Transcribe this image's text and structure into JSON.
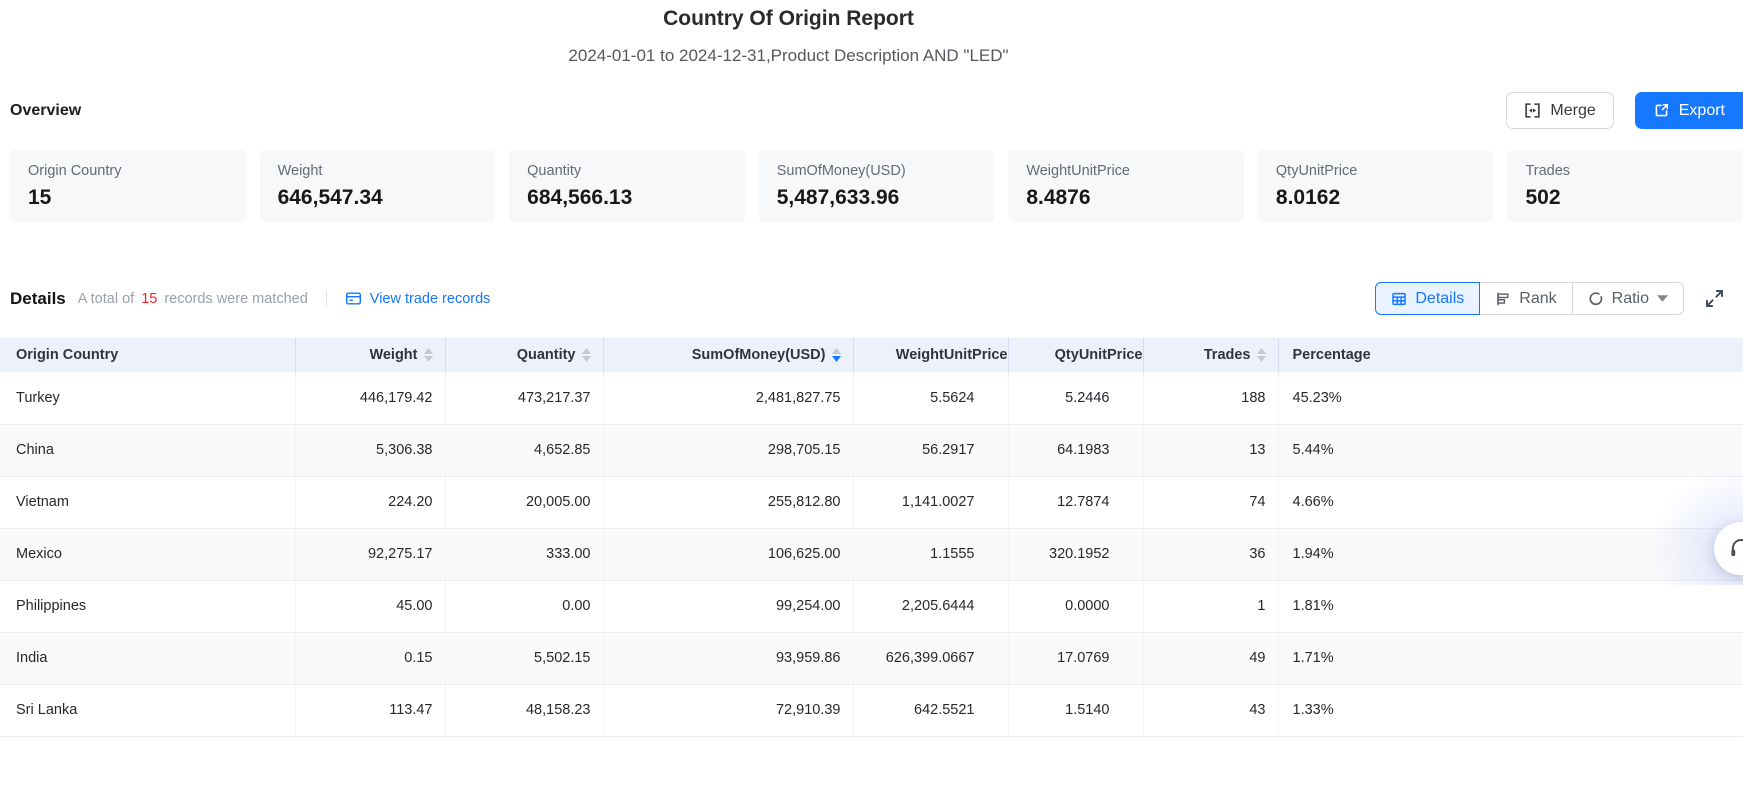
{
  "page": {
    "title": "Country Of Origin Report",
    "subtitle": "2024-01-01 to 2024-12-31,Product Description AND \"LED\""
  },
  "overview": {
    "heading": "Overview",
    "merge_label": "Merge",
    "export_label": "Export",
    "cards": [
      {
        "label": "Origin Country",
        "value": "15"
      },
      {
        "label": "Weight",
        "value": "646,547.34"
      },
      {
        "label": "Quantity",
        "value": "684,566.13"
      },
      {
        "label": "SumOfMoney(USD)",
        "value": "5,487,633.96"
      },
      {
        "label": "WeightUnitPrice",
        "value": "8.4876"
      },
      {
        "label": "QtyUnitPrice",
        "value": "8.0162"
      },
      {
        "label": "Trades",
        "value": "502"
      }
    ]
  },
  "details": {
    "heading": "Details",
    "summary_prefix": "A total of",
    "summary_count": "15",
    "summary_suffix": "records were matched",
    "link_label": "View trade records",
    "view_tabs": [
      {
        "label": "Details",
        "active": true
      },
      {
        "label": "Rank",
        "active": false
      },
      {
        "label": "Ratio",
        "active": false
      }
    ]
  },
  "table": {
    "columns": [
      {
        "label": "Origin Country",
        "sortable": false,
        "sort": null
      },
      {
        "label": "Weight",
        "sortable": true,
        "sort": null
      },
      {
        "label": "Quantity",
        "sortable": true,
        "sort": null
      },
      {
        "label": "SumOfMoney(USD)",
        "sortable": true,
        "sort": "desc"
      },
      {
        "label": "WeightUnitPrice",
        "sortable": false,
        "sort": null
      },
      {
        "label": "QtyUnitPrice",
        "sortable": false,
        "sort": null
      },
      {
        "label": "Trades",
        "sortable": true,
        "sort": null
      },
      {
        "label": "Percentage",
        "sortable": false,
        "sort": null
      }
    ],
    "rows": [
      [
        "Turkey",
        "446,179.42",
        "473,217.37",
        "2,481,827.75",
        "5.5624",
        "5.2446",
        "188",
        "45.23%"
      ],
      [
        "China",
        "5,306.38",
        "4,652.85",
        "298,705.15",
        "56.2917",
        "64.1983",
        "13",
        "5.44%"
      ],
      [
        "Vietnam",
        "224.20",
        "20,005.00",
        "255,812.80",
        "1,141.0027",
        "12.7874",
        "74",
        "4.66%"
      ],
      [
        "Mexico",
        "92,275.17",
        "333.00",
        "106,625.00",
        "1.1555",
        "320.1952",
        "36",
        "1.94%"
      ],
      [
        "Philippines",
        "45.00",
        "0.00",
        "99,254.00",
        "2,205.6444",
        "0.0000",
        "1",
        "1.81%"
      ],
      [
        "India",
        "0.15",
        "5,502.15",
        "93,959.86",
        "626,399.0667",
        "17.0769",
        "49",
        "1.71%"
      ],
      [
        "Sri Lanka",
        "113.47",
        "48,158.23",
        "72,910.39",
        "642.5521",
        "1.5140",
        "43",
        "1.33%"
      ]
    ]
  },
  "colors": {
    "accent_blue": "#1677ff",
    "active_tab_bg": "#e9f2ff",
    "table_header_bg": "#edf1fc",
    "count_red": "#f5222d",
    "card_bg": "#f7f8fa",
    "row_alt_bg": "#fafafa",
    "sort_inactive": "#c5c8ce"
  }
}
